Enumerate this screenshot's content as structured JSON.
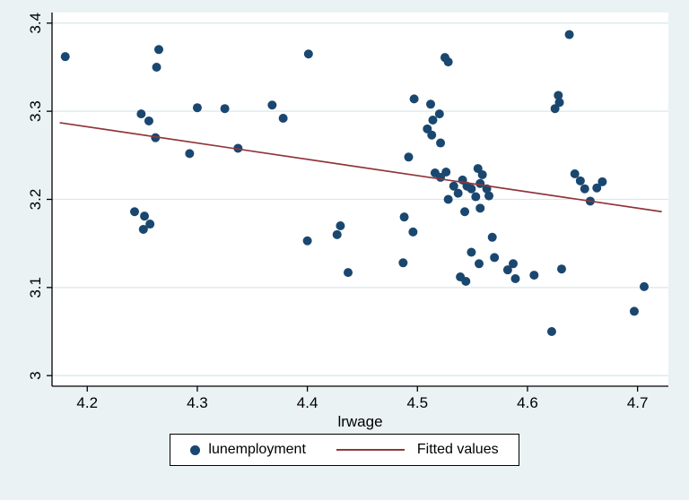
{
  "figure": {
    "background": "#eaf2f3",
    "plot_background": "#ffffff",
    "grid_color": "#dbe8eb",
    "axis_color": "#000000"
  },
  "chart_data": {
    "type": "scatter",
    "title": "",
    "xlabel": "lrwage",
    "ylabel": "",
    "xlim": [
      4.168,
      4.728
    ],
    "ylim": [
      2.988,
      3.412
    ],
    "x_ticks": [
      4.2,
      4.3,
      4.4,
      4.5,
      4.6,
      4.7
    ],
    "x_tick_labels": [
      "4.2",
      "4.3",
      "4.4",
      "4.5",
      "4.6",
      "4.7"
    ],
    "y_ticks": [
      3,
      3.1,
      3.2,
      3.3,
      3.4
    ],
    "y_tick_labels": [
      "3",
      "3.1",
      "3.2",
      "3.3",
      "3.4"
    ],
    "grid": "horizontal",
    "series": [
      {
        "name": "lunemployment",
        "type": "scatter",
        "color": "#1a476f",
        "points": [
          [
            4.18,
            3.362
          ],
          [
            4.265,
            3.37
          ],
          [
            4.263,
            3.35
          ],
          [
            4.249,
            3.297
          ],
          [
            4.256,
            3.289
          ],
          [
            4.262,
            3.27
          ],
          [
            4.3,
            3.304
          ],
          [
            4.325,
            3.303
          ],
          [
            4.293,
            3.252
          ],
          [
            4.337,
            3.258
          ],
          [
            4.368,
            3.307
          ],
          [
            4.378,
            3.292
          ],
          [
            4.243,
            3.186
          ],
          [
            4.252,
            3.181
          ],
          [
            4.251,
            3.166
          ],
          [
            4.257,
            3.172
          ],
          [
            4.401,
            3.365
          ],
          [
            4.4,
            3.153
          ],
          [
            4.43,
            3.17
          ],
          [
            4.427,
            3.16
          ],
          [
            4.437,
            3.117
          ],
          [
            4.488,
            3.18
          ],
          [
            4.487,
            3.128
          ],
          [
            4.496,
            3.163
          ],
          [
            4.492,
            3.248
          ],
          [
            4.497,
            3.314
          ],
          [
            4.512,
            3.308
          ],
          [
            4.514,
            3.29
          ],
          [
            4.509,
            3.28
          ],
          [
            4.513,
            3.273
          ],
          [
            4.52,
            3.297
          ],
          [
            4.525,
            3.361
          ],
          [
            4.528,
            3.356
          ],
          [
            4.521,
            3.264
          ],
          [
            4.516,
            3.23
          ],
          [
            4.521,
            3.225
          ],
          [
            4.526,
            3.231
          ],
          [
            4.528,
            3.2
          ],
          [
            4.533,
            3.215
          ],
          [
            4.537,
            3.207
          ],
          [
            4.541,
            3.222
          ],
          [
            4.545,
            3.215
          ],
          [
            4.549,
            3.212
          ],
          [
            4.553,
            3.203
          ],
          [
            4.557,
            3.218
          ],
          [
            4.559,
            3.228
          ],
          [
            4.555,
            3.235
          ],
          [
            4.563,
            3.212
          ],
          [
            4.565,
            3.204
          ],
          [
            4.543,
            3.186
          ],
          [
            4.557,
            3.19
          ],
          [
            4.549,
            3.14
          ],
          [
            4.556,
            3.127
          ],
          [
            4.539,
            3.112
          ],
          [
            4.544,
            3.107
          ],
          [
            4.568,
            3.157
          ],
          [
            4.57,
            3.134
          ],
          [
            4.582,
            3.12
          ],
          [
            4.587,
            3.127
          ],
          [
            4.589,
            3.11
          ],
          [
            4.606,
            3.114
          ],
          [
            4.622,
            3.05
          ],
          [
            4.625,
            3.303
          ],
          [
            4.629,
            3.31
          ],
          [
            4.628,
            3.318
          ],
          [
            4.638,
            3.387
          ],
          [
            4.631,
            3.121
          ],
          [
            4.643,
            3.229
          ],
          [
            4.648,
            3.221
          ],
          [
            4.652,
            3.212
          ],
          [
            4.657,
            3.198
          ],
          [
            4.663,
            3.213
          ],
          [
            4.668,
            3.22
          ],
          [
            4.697,
            3.073
          ],
          [
            4.706,
            3.101
          ]
        ]
      },
      {
        "name": "Fitted values",
        "type": "line",
        "color": "#90353b",
        "points": [
          [
            4.175,
            3.287
          ],
          [
            4.722,
            3.186
          ]
        ]
      }
    ],
    "legend": {
      "position": "bottom",
      "items": [
        {
          "label": "lunemployment",
          "marker": "circle",
          "color": "#1a476f"
        },
        {
          "label": "Fitted values",
          "marker": "line",
          "color": "#90353b"
        }
      ]
    }
  }
}
